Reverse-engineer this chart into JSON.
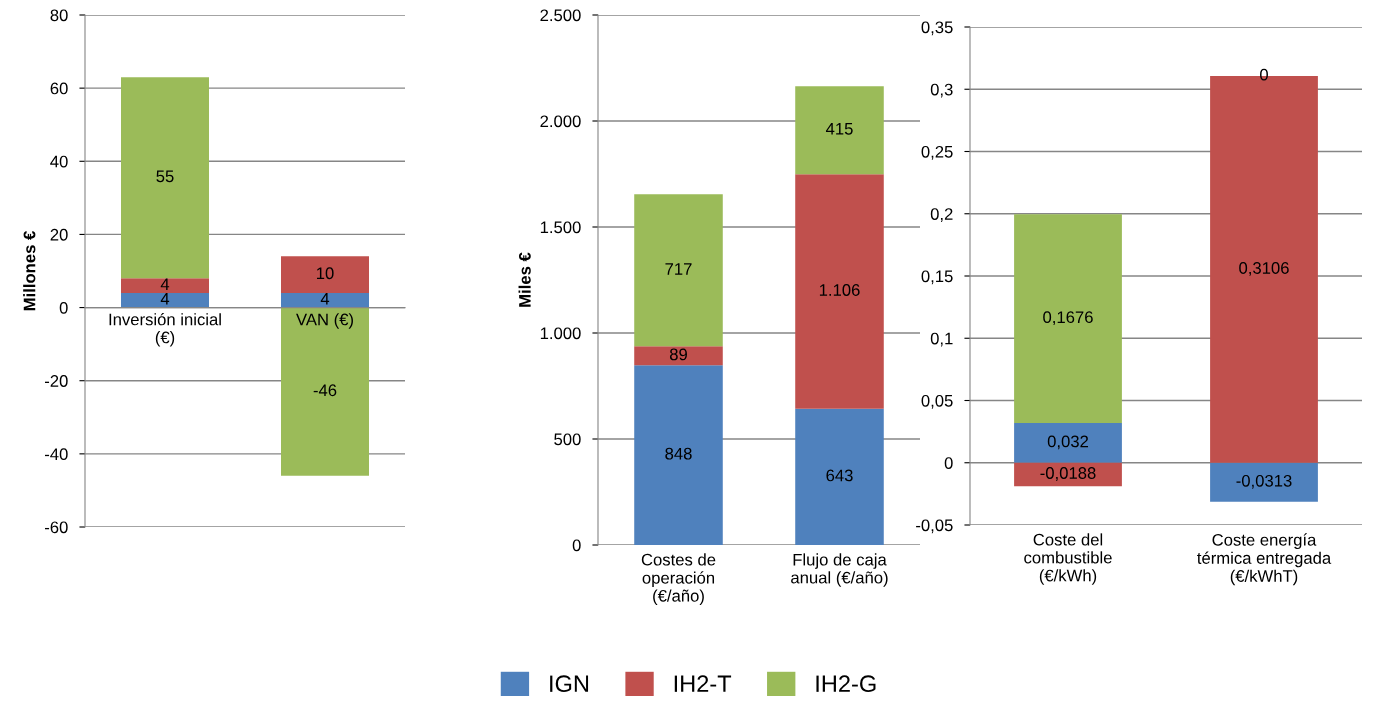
{
  "chart_data": [
    {
      "type": "bar",
      "stacked": true,
      "categories": [
        "Inversión inicial\n(€)",
        "VAN (€)"
      ],
      "ylabel": "Millones €",
      "ylim": [
        -60,
        80
      ],
      "yticks": [
        -60,
        -40,
        -20,
        0,
        20,
        40,
        60,
        80
      ],
      "grid": "y",
      "legend": "bottom",
      "series": [
        {
          "name": "IGN",
          "color": "#4f81bd",
          "values": [
            4,
            4
          ],
          "value_labels": [
            "4",
            "4"
          ]
        },
        {
          "name": "IH2-T",
          "color": "#c0504d",
          "values": [
            4,
            10
          ],
          "value_labels": [
            "4",
            "10"
          ]
        },
        {
          "name": "IH2-G",
          "color": "#9bbb59",
          "values": [
            55,
            -46
          ],
          "value_labels": [
            "55",
            "-46"
          ]
        }
      ]
    },
    {
      "type": "bar",
      "stacked": true,
      "categories": [
        "Costes de\noperación\n(€/año)",
        "Flujo de caja\nanual (€/año)"
      ],
      "ylabel": "Miles €",
      "ylim": [
        0,
        2500
      ],
      "yticks": [
        0,
        500,
        {
          "value": 1000,
          "label": "1.000"
        },
        {
          "value": 1500,
          "label": "1.500"
        },
        {
          "value": 2000,
          "label": "2.000"
        },
        {
          "value": 2500,
          "label": "2.500"
        }
      ],
      "grid": "y",
      "legend": "bottom",
      "series": [
        {
          "name": "IGN",
          "color": "#4f81bd",
          "values": [
            848,
            643
          ],
          "value_labels": [
            "848",
            "643"
          ]
        },
        {
          "name": "IH2-T",
          "color": "#c0504d",
          "values": [
            89,
            1106
          ],
          "value_labels": [
            "89",
            "1.106"
          ]
        },
        {
          "name": "IH2-G",
          "color": "#9bbb59",
          "values": [
            717,
            415
          ],
          "value_labels": [
            "717",
            "415"
          ]
        }
      ]
    },
    {
      "type": "bar",
      "stacked": true,
      "categories": [
        "Coste del\ncombustible\n(€/kWh)",
        "Coste energía\ntérmica entregada\n(€/kWhT)"
      ],
      "ylim": [
        -0.05,
        0.35
      ],
      "yticks": [
        {
          "value": -0.05,
          "label": "-0,05"
        },
        0,
        {
          "value": 0.05,
          "label": "0,05"
        },
        {
          "value": 0.1,
          "label": "0,1"
        },
        {
          "value": 0.15,
          "label": "0,15"
        },
        {
          "value": 0.2,
          "label": "0,2"
        },
        {
          "value": 0.25,
          "label": "0,25"
        },
        {
          "value": 0.3,
          "label": "0,3"
        },
        {
          "value": 0.35,
          "label": "0,35"
        }
      ],
      "grid": "y",
      "legend": "bottom",
      "series": [
        {
          "name": "IGN",
          "color": "#4f81bd",
          "values": [
            0.032,
            -0.0313
          ],
          "value_labels": [
            "0,032",
            "-0,0313"
          ]
        },
        {
          "name": "IH2-T",
          "color": "#c0504d",
          "values": [
            -0.0188,
            0.3106
          ],
          "value_labels": [
            "-0,0188",
            "0,3106"
          ]
        },
        {
          "name": "IH2-G",
          "color": "#9bbb59",
          "values": [
            0.1676,
            0
          ],
          "value_labels": [
            "0,1676",
            "0"
          ]
        }
      ]
    }
  ]
}
